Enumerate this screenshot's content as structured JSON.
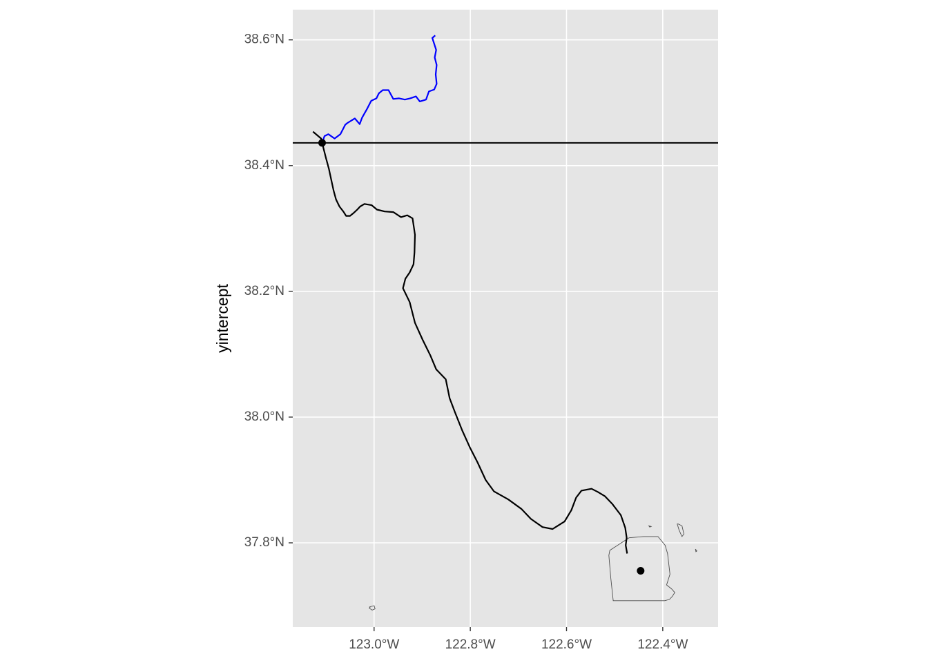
{
  "chart_data": {
    "type": "map",
    "title": "",
    "xlabel": "",
    "ylabel": "yintercept",
    "xlim": [
      -123.169,
      -122.285
    ],
    "ylim": [
      37.666,
      38.648
    ],
    "x_ticks": [
      {
        "value": -123.0,
        "label": "123.0°W"
      },
      {
        "value": -122.8,
        "label": "122.8°W"
      },
      {
        "value": -122.6,
        "label": "122.6°W"
      },
      {
        "value": -122.4,
        "label": "122.4°W"
      }
    ],
    "y_ticks": [
      {
        "value": 37.8,
        "label": "37.8°N"
      },
      {
        "value": 38.0,
        "label": "38.0°N"
      },
      {
        "value": 38.2,
        "label": "38.2°N"
      },
      {
        "value": 38.4,
        "label": "38.4°N"
      },
      {
        "value": 38.6,
        "label": "38.6°N"
      }
    ],
    "grid": true,
    "legend": "none",
    "colors": {
      "panel_background": "#e5e5e5",
      "grid": "#ffffff",
      "route": "#000000",
      "river": "#0000ff",
      "boundary": "#4d4d4d"
    },
    "hline": {
      "y": 38.4362
    },
    "points": [
      {
        "lon": -123.108,
        "lat": 38.4362
      },
      {
        "lon": -122.446,
        "lat": 37.7555
      }
    ],
    "route": {
      "lon": [
        -123.127,
        -123.11,
        -123.108,
        -123.1,
        -123.094,
        -123.088,
        -123.084,
        -123.079,
        -123.072,
        -123.064,
        -123.058,
        -123.05,
        -123.042,
        -123.035,
        -123.029,
        -123.02,
        -123.005,
        -122.994,
        -122.978,
        -122.96,
        -122.944,
        -122.931,
        -122.92,
        -122.915,
        -122.916,
        -122.918,
        -122.926,
        -122.935,
        -122.94,
        -122.926,
        -122.921,
        -122.915,
        -122.899,
        -122.883,
        -122.871,
        -122.851,
        -122.843,
        -122.832,
        -122.817,
        -122.801,
        -122.785,
        -122.768,
        -122.751,
        -122.721,
        -122.694,
        -122.674,
        -122.65,
        -122.629,
        -122.604,
        -122.59,
        -122.58,
        -122.569,
        -122.548,
        -122.535,
        -122.52,
        -122.505,
        -122.487,
        -122.478,
        -122.475,
        -122.477,
        -122.474
      ],
      "lat": [
        38.454,
        38.443,
        38.4362,
        38.412,
        38.395,
        38.374,
        38.36,
        38.346,
        38.335,
        38.327,
        38.32,
        38.32,
        38.325,
        38.33,
        38.335,
        38.339,
        38.337,
        38.33,
        38.327,
        38.326,
        38.318,
        38.321,
        38.316,
        38.29,
        38.262,
        38.243,
        38.23,
        38.22,
        38.205,
        38.183,
        38.168,
        38.15,
        38.123,
        38.098,
        38.076,
        38.06,
        38.03,
        38.008,
        37.979,
        37.952,
        37.928,
        37.9,
        37.882,
        37.869,
        37.854,
        37.838,
        37.825,
        37.822,
        37.834,
        37.852,
        37.872,
        37.883,
        37.886,
        37.881,
        37.874,
        37.862,
        37.844,
        37.824,
        37.808,
        37.796,
        37.783
      ]
    },
    "river": {
      "lon": [
        -123.108,
        -123.103,
        -123.095,
        -123.082,
        -123.07,
        -123.06,
        -123.055,
        -123.04,
        -123.03,
        -123.025,
        -123.014,
        -123.006,
        -122.995,
        -122.99,
        -122.982,
        -122.97,
        -122.96,
        -122.948,
        -122.936,
        -122.925,
        -122.913,
        -122.905,
        -122.892,
        -122.886,
        -122.875,
        -122.87,
        -122.872,
        -122.87,
        -122.874,
        -122.871,
        -122.879,
        -122.873
      ],
      "lat": [
        38.4362,
        38.447,
        38.45,
        38.443,
        38.45,
        38.465,
        38.468,
        38.475,
        38.466,
        38.476,
        38.491,
        38.503,
        38.507,
        38.515,
        38.52,
        38.52,
        38.506,
        38.507,
        38.505,
        38.507,
        38.51,
        38.502,
        38.505,
        38.518,
        38.521,
        38.53,
        38.545,
        38.56,
        38.572,
        38.584,
        38.603,
        38.607
      ]
    },
    "boundaries": [
      {
        "lon": [
          -122.51,
          -122.47,
          -122.44,
          -122.41,
          -122.395,
          -122.39,
          -122.385,
          -122.392,
          -122.382,
          -122.375,
          -122.38,
          -122.386,
          -122.396,
          -122.503,
          -122.508,
          -122.512,
          -122.51
        ],
        "lat": [
          37.788,
          37.808,
          37.81,
          37.81,
          37.796,
          37.783,
          37.75,
          37.733,
          37.727,
          37.721,
          37.715,
          37.71,
          37.708,
          37.708,
          37.744,
          37.78,
          37.788
        ]
      },
      {
        "lon": [
          -123.01,
          -123.0,
          -122.998,
          -123.004,
          -123.01,
          -123.008,
          -123.01
        ],
        "lat": [
          37.698,
          37.7,
          37.695,
          37.693,
          37.696,
          37.698,
          37.698
        ]
      },
      {
        "lon": [
          -122.368,
          -122.36,
          -122.356,
          -122.36,
          -122.366,
          -122.37,
          -122.368
        ],
        "lat": [
          37.83,
          37.827,
          37.814,
          37.81,
          37.82,
          37.83,
          37.83
        ]
      },
      {
        "lon": [
          -122.429,
          -122.424,
          -122.427,
          -122.429
        ],
        "lat": [
          37.827,
          37.826,
          37.825,
          37.827
        ]
      },
      {
        "lon": [
          -122.332,
          -122.329,
          -122.331,
          -122.332
        ],
        "lat": [
          37.79,
          37.787,
          37.786,
          37.79
        ]
      }
    ]
  }
}
